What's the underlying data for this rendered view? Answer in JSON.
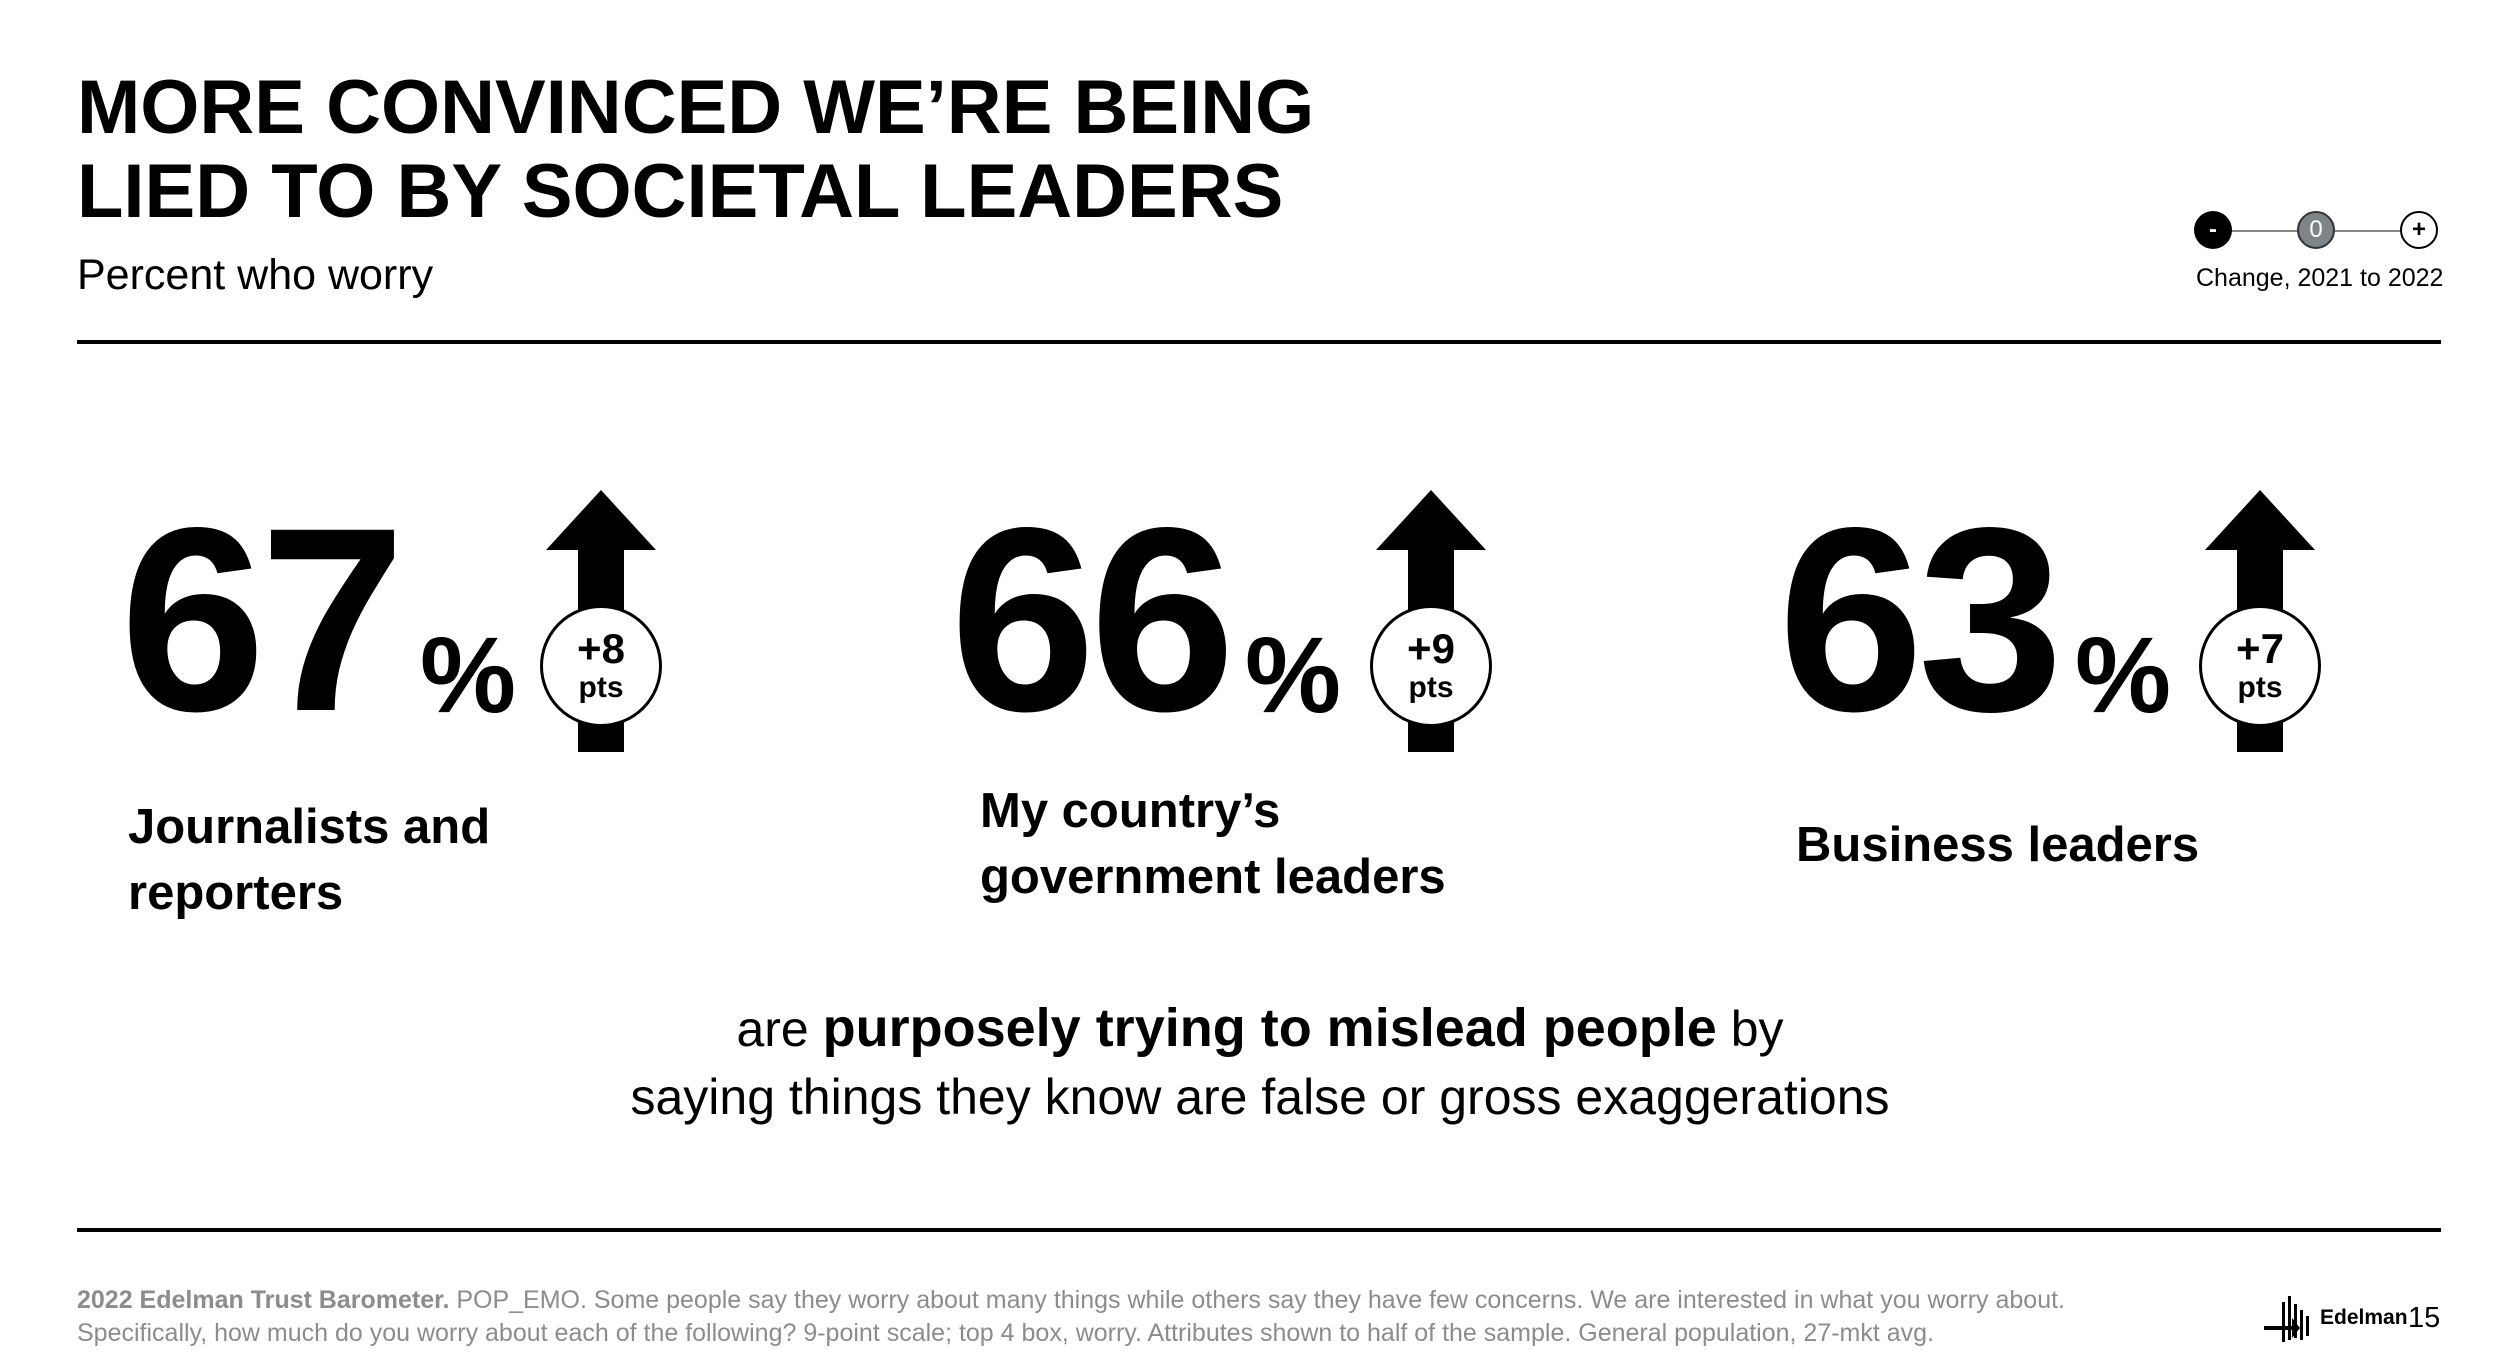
{
  "title": {
    "line1": "MORE CONVINCED WE’RE BEING",
    "line2": "LIED TO BY SOCIETAL LEADERS"
  },
  "subtitle": "Percent who worry",
  "legend": {
    "minus": "-",
    "zero": "0",
    "plus": "+",
    "caption": "Change, 2021 to 2022"
  },
  "stats": [
    {
      "value": "67",
      "unit": "%",
      "change": "+8",
      "change_unit": "pts",
      "label_line1": "Journalists and",
      "label_line2": "reporters",
      "direction": "up"
    },
    {
      "value": "66",
      "unit": "%",
      "change": "+9",
      "change_unit": "pts",
      "label_line1": "My country’s",
      "label_line2": "government leaders",
      "direction": "up"
    },
    {
      "value": "63",
      "unit": "%",
      "change": "+7",
      "change_unit": "pts",
      "label_line1": "Business leaders",
      "label_line2": "",
      "direction": "up"
    }
  ],
  "statement": {
    "prefix": "are ",
    "emphasis": "purposely trying to mislead people",
    "suffix": " by",
    "line2": "saying things they know are false or gross exaggerations"
  },
  "footnote": {
    "source": "2022 Edelman Trust Barometer.",
    "text1": " POP_EMO. Some people say they worry about many things while others say they have few concerns. We are interested in what you worry about.",
    "text2": "Specifically, how much do you worry about each of the following? 9-point scale; top 4 box, worry. Attributes shown to half of the sample. General population, 27-mkt avg."
  },
  "brand": "Edelman",
  "page_number": "15"
}
